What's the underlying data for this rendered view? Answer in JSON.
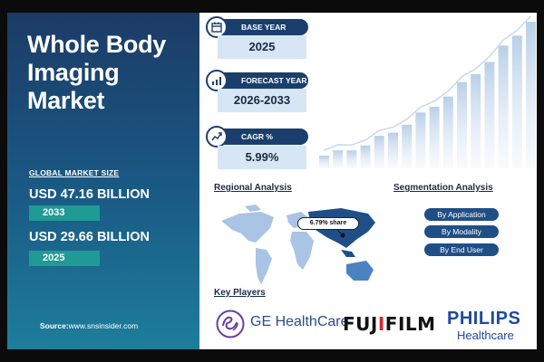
{
  "left": {
    "title_line1": "Whole Body",
    "title_line2": "Imaging",
    "title_line3": "Market",
    "global_label": "GLOBAL MARKET SIZE",
    "value_2033": "USD 47.16 BILLION",
    "year_2033": "2033",
    "value_2025": "USD 29.66 BILLION",
    "year_2025": "2025",
    "source_label": "Source:",
    "source_url": "www.snsinsider.com"
  },
  "cards": [
    {
      "label": "BASE YEAR",
      "value": "2025",
      "icon": "calendar-icon"
    },
    {
      "label": "FORECAST YEAR",
      "value": "2026-2033",
      "icon": "chart-icon"
    },
    {
      "label": "CAGR %",
      "value": "5.99%",
      "icon": "growth-icon"
    }
  ],
  "regional": {
    "heading": "Regional Analysis",
    "share": "6.79% share"
  },
  "segmentation": {
    "heading": "Segmentation Analysis",
    "items": [
      "By Application",
      "By Modality",
      "By End User"
    ]
  },
  "players": {
    "heading": "Key Players",
    "ge_text": "GE HealthCare",
    "fuji_a": "FUJ",
    "fuji_i": "I",
    "fuji_b": "FILM",
    "philips": "PHILIPS",
    "philips_sub": "Healthcare"
  },
  "colors": {
    "navy": "#1a3f6d",
    "teal": "#1f9a95",
    "light_blue": "#d6e6f5",
    "fuji_red": "#d8232a"
  }
}
